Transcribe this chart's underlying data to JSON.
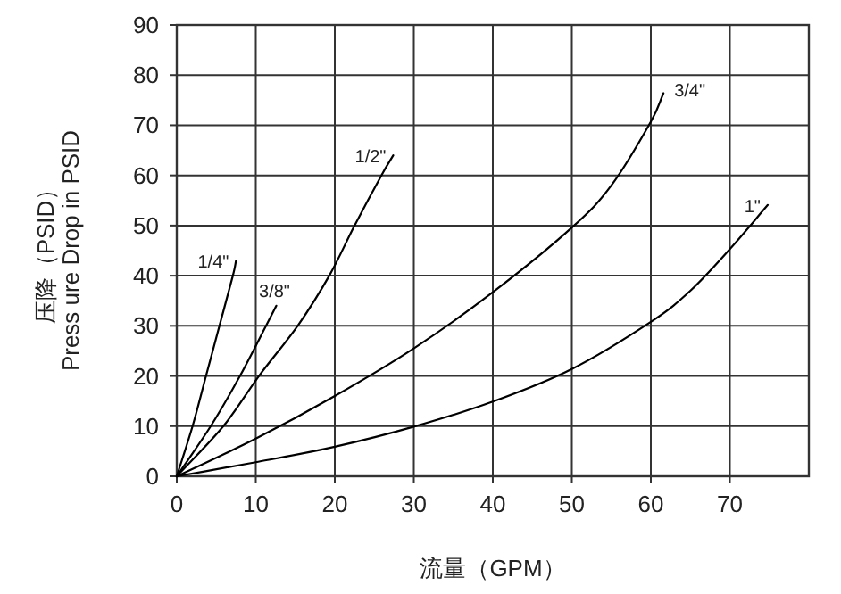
{
  "chart_data": {
    "type": "line",
    "xlabel": "流量（GPM）",
    "ylabel": "压降（PSID）\nPress ure Drop in PSID",
    "xlim": [
      0,
      80
    ],
    "xticks": [
      0,
      10,
      20,
      30,
      40,
      50,
      60,
      70
    ],
    "ylim": [
      0,
      90
    ],
    "yticks": [
      0,
      10,
      20,
      30,
      40,
      50,
      60,
      70,
      80,
      90
    ],
    "grid": true,
    "marker": "none",
    "line_style": "solid",
    "series": [
      {
        "name": "1/4\"",
        "color": "#000000",
        "x": [
          0,
          2.0,
          3.7,
          5.4,
          7.1,
          7.5
        ],
        "values": [
          0,
          10,
          20,
          30,
          40,
          43
        ]
      },
      {
        "name": "3/8\"",
        "color": "#000000",
        "x": [
          0,
          4.3,
          8.0,
          11.3,
          12.6
        ],
        "values": [
          0,
          10,
          20,
          30,
          34
        ]
      },
      {
        "name": "1/2\"",
        "color": "#000000",
        "x": [
          0,
          5.9,
          10.4,
          15.3,
          19.3,
          22.5,
          25.9,
          27.4
        ],
        "values": [
          0,
          10,
          20,
          30,
          40,
          50,
          60,
          64
        ]
      },
      {
        "name": "3/4\"",
        "color": "#000000",
        "x": [
          0,
          10,
          20,
          30,
          40,
          50,
          55,
          60,
          61.6
        ],
        "values": [
          0,
          7.5,
          16,
          25.5,
          36.7,
          49.6,
          58,
          70.7,
          76.4
        ]
      },
      {
        "name": "1\"",
        "color": "#000000",
        "x": [
          0,
          10,
          20,
          30,
          40,
          50,
          60,
          65,
          70,
          74.8
        ],
        "values": [
          0,
          2.8,
          5.9,
          9.9,
          14.9,
          21.4,
          30.8,
          37,
          45.3,
          54.1
        ]
      }
    ]
  }
}
